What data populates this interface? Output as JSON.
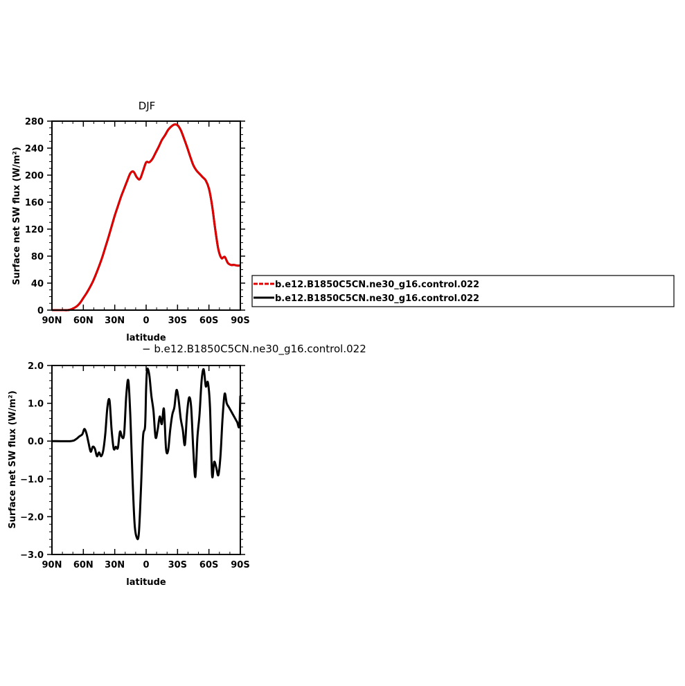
{
  "chart_data": [
    {
      "type": "line",
      "title": "DJF",
      "xlabel": "latitude",
      "ylabel": "Surface net SW flux (W/m²)",
      "xlim": [
        90,
        -90
      ],
      "ylim": [
        0,
        280
      ],
      "x_ticks": [
        90,
        60,
        30,
        0,
        -30,
        -60,
        -90
      ],
      "x_tick_labels": [
        "90N",
        "60N",
        "30N",
        "0",
        "30S",
        "60S",
        "90S"
      ],
      "y_ticks": [
        0,
        40,
        80,
        120,
        160,
        200,
        240,
        280
      ],
      "y_tick_labels": [
        "0",
        "40",
        "80",
        "120",
        "160",
        "200",
        "240",
        "280"
      ],
      "legend_position": "right",
      "series": [
        {
          "name": "b.e12.B1850C5CN.ne30_g16.control.022",
          "color": "#e00000",
          "dash": "dashed",
          "x": [
            90,
            85,
            80,
            75,
            72,
            69,
            66,
            63,
            60,
            57,
            54,
            51,
            48,
            45,
            42,
            39,
            36,
            33,
            30,
            27,
            24,
            21,
            18,
            15,
            12,
            9,
            6,
            3,
            0,
            -3,
            -6,
            -9,
            -12,
            -15,
            -18,
            -21,
            -24,
            -27,
            -30,
            -33,
            -36,
            -39,
            -42,
            -45,
            -48,
            -51,
            -54,
            -57,
            -60,
            -63,
            -66,
            -69,
            -72,
            -75,
            -78,
            -81,
            -84,
            -87,
            -90
          ],
          "y": [
            0,
            0,
            0,
            0,
            1,
            3,
            6,
            11,
            18,
            25,
            33,
            42,
            53,
            65,
            78,
            93,
            108,
            124,
            140,
            154,
            168,
            180,
            192,
            203,
            205,
            197,
            194,
            206,
            219,
            219,
            224,
            233,
            242,
            252,
            259,
            267,
            272,
            275,
            274,
            267,
            255,
            242,
            228,
            215,
            207,
            202,
            197,
            192,
            180,
            155,
            120,
            90,
            77,
            79,
            70,
            67,
            67,
            66,
            66
          ]
        },
        {
          "name": "b.e12.B1850C5CN.ne30_g16.control.022",
          "color": "#000000",
          "dash": "solid",
          "x": [
            90,
            85,
            80,
            75,
            72,
            69,
            66,
            63,
            60,
            57,
            54,
            51,
            48,
            45,
            42,
            39,
            36,
            33,
            30,
            27,
            24,
            21,
            18,
            15,
            12,
            9,
            6,
            3,
            0,
            -3,
            -6,
            -9,
            -12,
            -15,
            -18,
            -21,
            -24,
            -27,
            -30,
            -33,
            -36,
            -39,
            -42,
            -45,
            -48,
            -51,
            -54,
            -57,
            -60,
            -63,
            -66,
            -69,
            -72,
            -75,
            -78,
            -81,
            -84,
            -87,
            -90
          ],
          "y": [
            0,
            0,
            0,
            0,
            1,
            3,
            6,
            11,
            18,
            25,
            33,
            42,
            53,
            65,
            78,
            93,
            108,
            124,
            140,
            154,
            168,
            180,
            192,
            203,
            205,
            197,
            194,
            206,
            219,
            219,
            224,
            233,
            242,
            252,
            259,
            267,
            272,
            275,
            274,
            267,
            255,
            242,
            228,
            215,
            207,
            202,
            197,
            192,
            180,
            155,
            120,
            90,
            77,
            79,
            70,
            67,
            67,
            66,
            66
          ]
        }
      ]
    },
    {
      "type": "line",
      "title": "b.e12.B1850C5CN.ne30_g16.control.022",
      "xlabel": "latitude",
      "ylabel": "Surface net SW flux (W/m²)",
      "xlim": [
        90,
        -90
      ],
      "ylim": [
        -3.0,
        2.0
      ],
      "x_ticks": [
        90,
        60,
        30,
        0,
        -30,
        -60,
        -90
      ],
      "x_tick_labels": [
        "90N",
        "60N",
        "30N",
        "0",
        "30S",
        "60S",
        "90S"
      ],
      "y_ticks": [
        -3.0,
        -2.0,
        -1.0,
        0.0,
        1.0,
        2.0
      ],
      "y_tick_labels": [
        "−3.0",
        "−2.0",
        "−1.0",
        "0.0",
        "1.0",
        "2.0"
      ],
      "series": [
        {
          "name": "b.e12.B1850C5CN.ne30_g16.control.022",
          "color": "#000000",
          "x": [
            90,
            72,
            67,
            64,
            61,
            59,
            57,
            55,
            53,
            51,
            49,
            47,
            45,
            43,
            41,
            39,
            37,
            35,
            33,
            31,
            29,
            27,
            25,
            23,
            21,
            19,
            17,
            15,
            13,
            11,
            9,
            7,
            5,
            3,
            1,
            0,
            -1,
            -3,
            -5,
            -7,
            -9,
            -11,
            -13,
            -15,
            -17,
            -19,
            -21,
            -23,
            -25,
            -27,
            -29,
            -31,
            -33,
            -35,
            -37,
            -39,
            -41,
            -43,
            -45,
            -47,
            -49,
            -51,
            -53,
            -55,
            -57,
            -59,
            -61,
            -63,
            -65,
            -67,
            -69,
            -71,
            -73,
            -75,
            -77,
            -79,
            -81,
            -83,
            -85,
            -87,
            -89,
            -90
          ],
          "y": [
            0,
            0,
            0.05,
            0.12,
            0.18,
            0.32,
            0.2,
            -0.05,
            -0.28,
            -0.15,
            -0.2,
            -0.4,
            -0.3,
            -0.4,
            -0.25,
            0.2,
            0.9,
            1.08,
            0.3,
            -0.2,
            -0.15,
            -0.18,
            0.25,
            0.1,
            0.2,
            1.2,
            1.6,
            0.6,
            -1.0,
            -2.2,
            -2.55,
            -2.45,
            -1.3,
            0.1,
            0.4,
            1.4,
            1.9,
            1.75,
            1.2,
            0.8,
            0.1,
            0.3,
            0.65,
            0.45,
            0.85,
            -0.2,
            -0.25,
            0.3,
            0.7,
            0.9,
            1.35,
            1.1,
            0.6,
            0.3,
            -0.1,
            0.7,
            1.15,
            0.9,
            -0.2,
            -0.95,
            0.1,
            0.7,
            1.6,
            1.9,
            1.45,
            1.55,
            0.9,
            -0.9,
            -0.55,
            -0.7,
            -0.9,
            -0.4,
            0.6,
            1.25,
            1.0,
            0.9,
            0.8,
            0.7,
            0.6,
            0.5,
            0.4,
            1.2
          ]
        }
      ]
    }
  ],
  "legend": {
    "entries": [
      "b.e12.B1850C5CN.ne30_g16.control.022",
      "b.e12.B1850C5CN.ne30_g16.control.022"
    ]
  },
  "bottom_subtitle": "− b.e12.B1850C5CN.ne30_g16.control.022"
}
